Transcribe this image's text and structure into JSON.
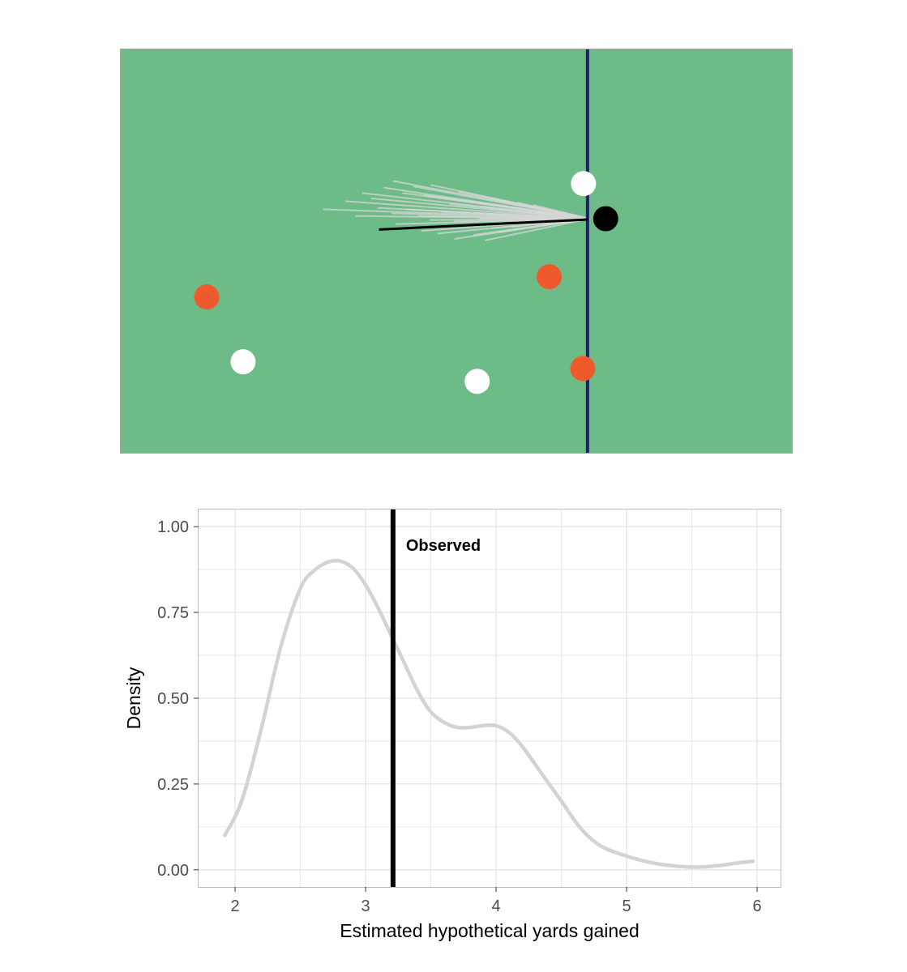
{
  "colors": {
    "field": "#6dbc88",
    "field_border": "#a7a7a7",
    "line_of_scrimmage": "#1f1f6b",
    "defense": "#ef5a2c",
    "offense": "#ffffff",
    "ball_carrier": "#000000",
    "simulated_paths": "#d6d6d6",
    "observed_path": "#000000",
    "density_curve": "#d3d3d3",
    "observed_line": "#000000",
    "grid": "#e4e4e4"
  },
  "chart_data": [
    {
      "type": "scatter",
      "description_free": true,
      "xlim": [
        0,
        100
      ],
      "ylim": [
        0,
        60
      ],
      "line_of_scrimmage_x": 69.5,
      "ball_carrier": {
        "x": 72.2,
        "y": 34.8
      },
      "observed_path_end": {
        "x": 38.5,
        "y": 33.2
      },
      "offense_players": [
        {
          "x": 68.9,
          "y": 40.0
        },
        {
          "x": 18.3,
          "y": 13.6
        },
        {
          "x": 53.1,
          "y": 10.7
        }
      ],
      "defense_players": [
        {
          "x": 12.9,
          "y": 23.2
        },
        {
          "x": 63.8,
          "y": 26.2
        },
        {
          "x": 68.8,
          "y": 12.6
        }
      ],
      "simulated_path_ends": [
        {
          "x": 30.2,
          "y": 36.2
        },
        {
          "x": 33.5,
          "y": 37.4
        },
        {
          "x": 36.0,
          "y": 38.6
        },
        {
          "x": 37.3,
          "y": 37.8
        },
        {
          "x": 39.2,
          "y": 39.4
        },
        {
          "x": 40.6,
          "y": 40.4
        },
        {
          "x": 42.0,
          "y": 38.6
        },
        {
          "x": 43.6,
          "y": 39.6
        },
        {
          "x": 45.1,
          "y": 38.3
        },
        {
          "x": 46.2,
          "y": 39.8
        },
        {
          "x": 47.5,
          "y": 38.0
        },
        {
          "x": 49.0,
          "y": 37.0
        },
        {
          "x": 50.3,
          "y": 38.8
        },
        {
          "x": 52.0,
          "y": 37.4
        },
        {
          "x": 53.6,
          "y": 36.6
        },
        {
          "x": 55.1,
          "y": 37.8
        },
        {
          "x": 38.3,
          "y": 36.4
        },
        {
          "x": 40.4,
          "y": 35.6
        },
        {
          "x": 42.5,
          "y": 36.2
        },
        {
          "x": 44.3,
          "y": 35.2
        },
        {
          "x": 46.0,
          "y": 34.6
        },
        {
          "x": 47.8,
          "y": 35.8
        },
        {
          "x": 49.6,
          "y": 34.4
        },
        {
          "x": 51.5,
          "y": 33.8
        },
        {
          "x": 53.4,
          "y": 34.8
        },
        {
          "x": 55.3,
          "y": 33.4
        },
        {
          "x": 57.0,
          "y": 35.0
        },
        {
          "x": 44.8,
          "y": 33.0
        },
        {
          "x": 47.2,
          "y": 32.6
        },
        {
          "x": 49.7,
          "y": 31.8
        },
        {
          "x": 52.6,
          "y": 32.4
        },
        {
          "x": 54.3,
          "y": 31.6
        },
        {
          "x": 56.4,
          "y": 32.8
        },
        {
          "x": 58.2,
          "y": 33.6
        },
        {
          "x": 60.0,
          "y": 35.8
        },
        {
          "x": 61.5,
          "y": 36.8
        },
        {
          "x": 35.0,
          "y": 35.2
        },
        {
          "x": 41.0,
          "y": 34.0
        },
        {
          "x": 59.0,
          "y": 37.2
        },
        {
          "x": 62.5,
          "y": 34.2
        }
      ]
    },
    {
      "type": "line",
      "xlabel": "Estimated hypothetical yards gained",
      "ylabel": "Density",
      "xlim": [
        1.72,
        6.18
      ],
      "ylim": [
        -0.05,
        1.05
      ],
      "x_ticks": [
        2,
        3,
        4,
        5,
        6
      ],
      "x_tick_labels": [
        "2",
        "3",
        "4",
        "5",
        "6"
      ],
      "y_ticks": [
        0.0,
        0.25,
        0.5,
        0.75,
        1.0
      ],
      "y_tick_labels": [
        "0.00",
        "0.25",
        "0.50",
        "0.75",
        "1.00"
      ],
      "grid": true,
      "observed_value": 3.21,
      "observed_label": "Observed",
      "x": [
        1.92,
        2.05,
        2.2,
        2.35,
        2.5,
        2.6,
        2.7,
        2.8,
        2.9,
        3.0,
        3.1,
        3.2,
        3.3,
        3.4,
        3.5,
        3.6,
        3.7,
        3.8,
        3.9,
        4.0,
        4.1,
        4.2,
        4.35,
        4.5,
        4.65,
        4.8,
        5.0,
        5.2,
        5.4,
        5.55,
        5.7,
        5.85,
        5.97
      ],
      "y": [
        0.1,
        0.2,
        0.41,
        0.65,
        0.82,
        0.87,
        0.895,
        0.9,
        0.88,
        0.83,
        0.76,
        0.68,
        0.6,
        0.52,
        0.46,
        0.43,
        0.415,
        0.415,
        0.42,
        0.42,
        0.4,
        0.36,
        0.28,
        0.2,
        0.12,
        0.07,
        0.04,
        0.02,
        0.01,
        0.008,
        0.012,
        0.02,
        0.025
      ]
    }
  ]
}
